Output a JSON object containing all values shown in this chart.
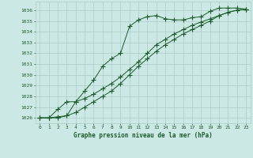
{
  "title": "Graphe pression niveau de la mer (hPa)",
  "background_color": "#cce8e4",
  "grid_color": "#aaccc8",
  "line_color": "#1a5c2a",
  "text_color": "#1a5c2a",
  "xlim": [
    -0.5,
    23.5
  ],
  "ylim": [
    1025.5,
    1036.8
  ],
  "yticks": [
    1026,
    1027,
    1028,
    1029,
    1030,
    1031,
    1032,
    1033,
    1034,
    1035,
    1036
  ],
  "xticks": [
    0,
    1,
    2,
    3,
    4,
    5,
    6,
    7,
    8,
    9,
    10,
    11,
    12,
    13,
    14,
    15,
    16,
    17,
    18,
    19,
    20,
    21,
    22,
    23
  ],
  "series": [
    {
      "x": [
        0,
        1,
        2,
        3,
        4,
        5,
        6,
        7,
        8,
        9,
        10,
        11,
        12,
        13,
        14,
        15,
        16,
        17,
        18,
        19,
        20,
        21,
        22,
        23
      ],
      "y": [
        1026.0,
        1026.0,
        1026.1,
        1026.2,
        1027.5,
        1028.5,
        1029.5,
        1030.8,
        1031.5,
        1032.0,
        1034.5,
        1035.1,
        1035.4,
        1035.5,
        1035.2,
        1035.1,
        1035.1,
        1035.3,
        1035.4,
        1035.9,
        1036.2,
        1036.2,
        1036.2,
        1036.1
      ],
      "marker": "+"
    },
    {
      "x": [
        0,
        1,
        2,
        3,
        4,
        5,
        6,
        7,
        8,
        9,
        10,
        11,
        12,
        13,
        14,
        15,
        16,
        17,
        18,
        19,
        20,
        21,
        22,
        23
      ],
      "y": [
        1026.0,
        1026.0,
        1026.8,
        1027.5,
        1027.5,
        1027.8,
        1028.2,
        1028.7,
        1029.2,
        1029.8,
        1030.5,
        1031.2,
        1032.0,
        1032.8,
        1033.3,
        1033.8,
        1034.2,
        1034.6,
        1034.9,
        1035.2,
        1035.5,
        1035.8,
        1036.0,
        1036.1
      ],
      "marker": "+"
    },
    {
      "x": [
        0,
        1,
        2,
        3,
        4,
        5,
        6,
        7,
        8,
        9,
        10,
        11,
        12,
        13,
        14,
        15,
        16,
        17,
        18,
        19,
        20,
        21,
        22,
        23
      ],
      "y": [
        1026.0,
        1026.0,
        1026.0,
        1026.2,
        1026.5,
        1027.0,
        1027.5,
        1028.0,
        1028.5,
        1029.2,
        1030.0,
        1030.8,
        1031.5,
        1032.2,
        1032.8,
        1033.3,
        1033.8,
        1034.2,
        1034.6,
        1035.0,
        1035.5,
        1035.8,
        1036.0,
        1036.1
      ],
      "marker": "+"
    }
  ]
}
